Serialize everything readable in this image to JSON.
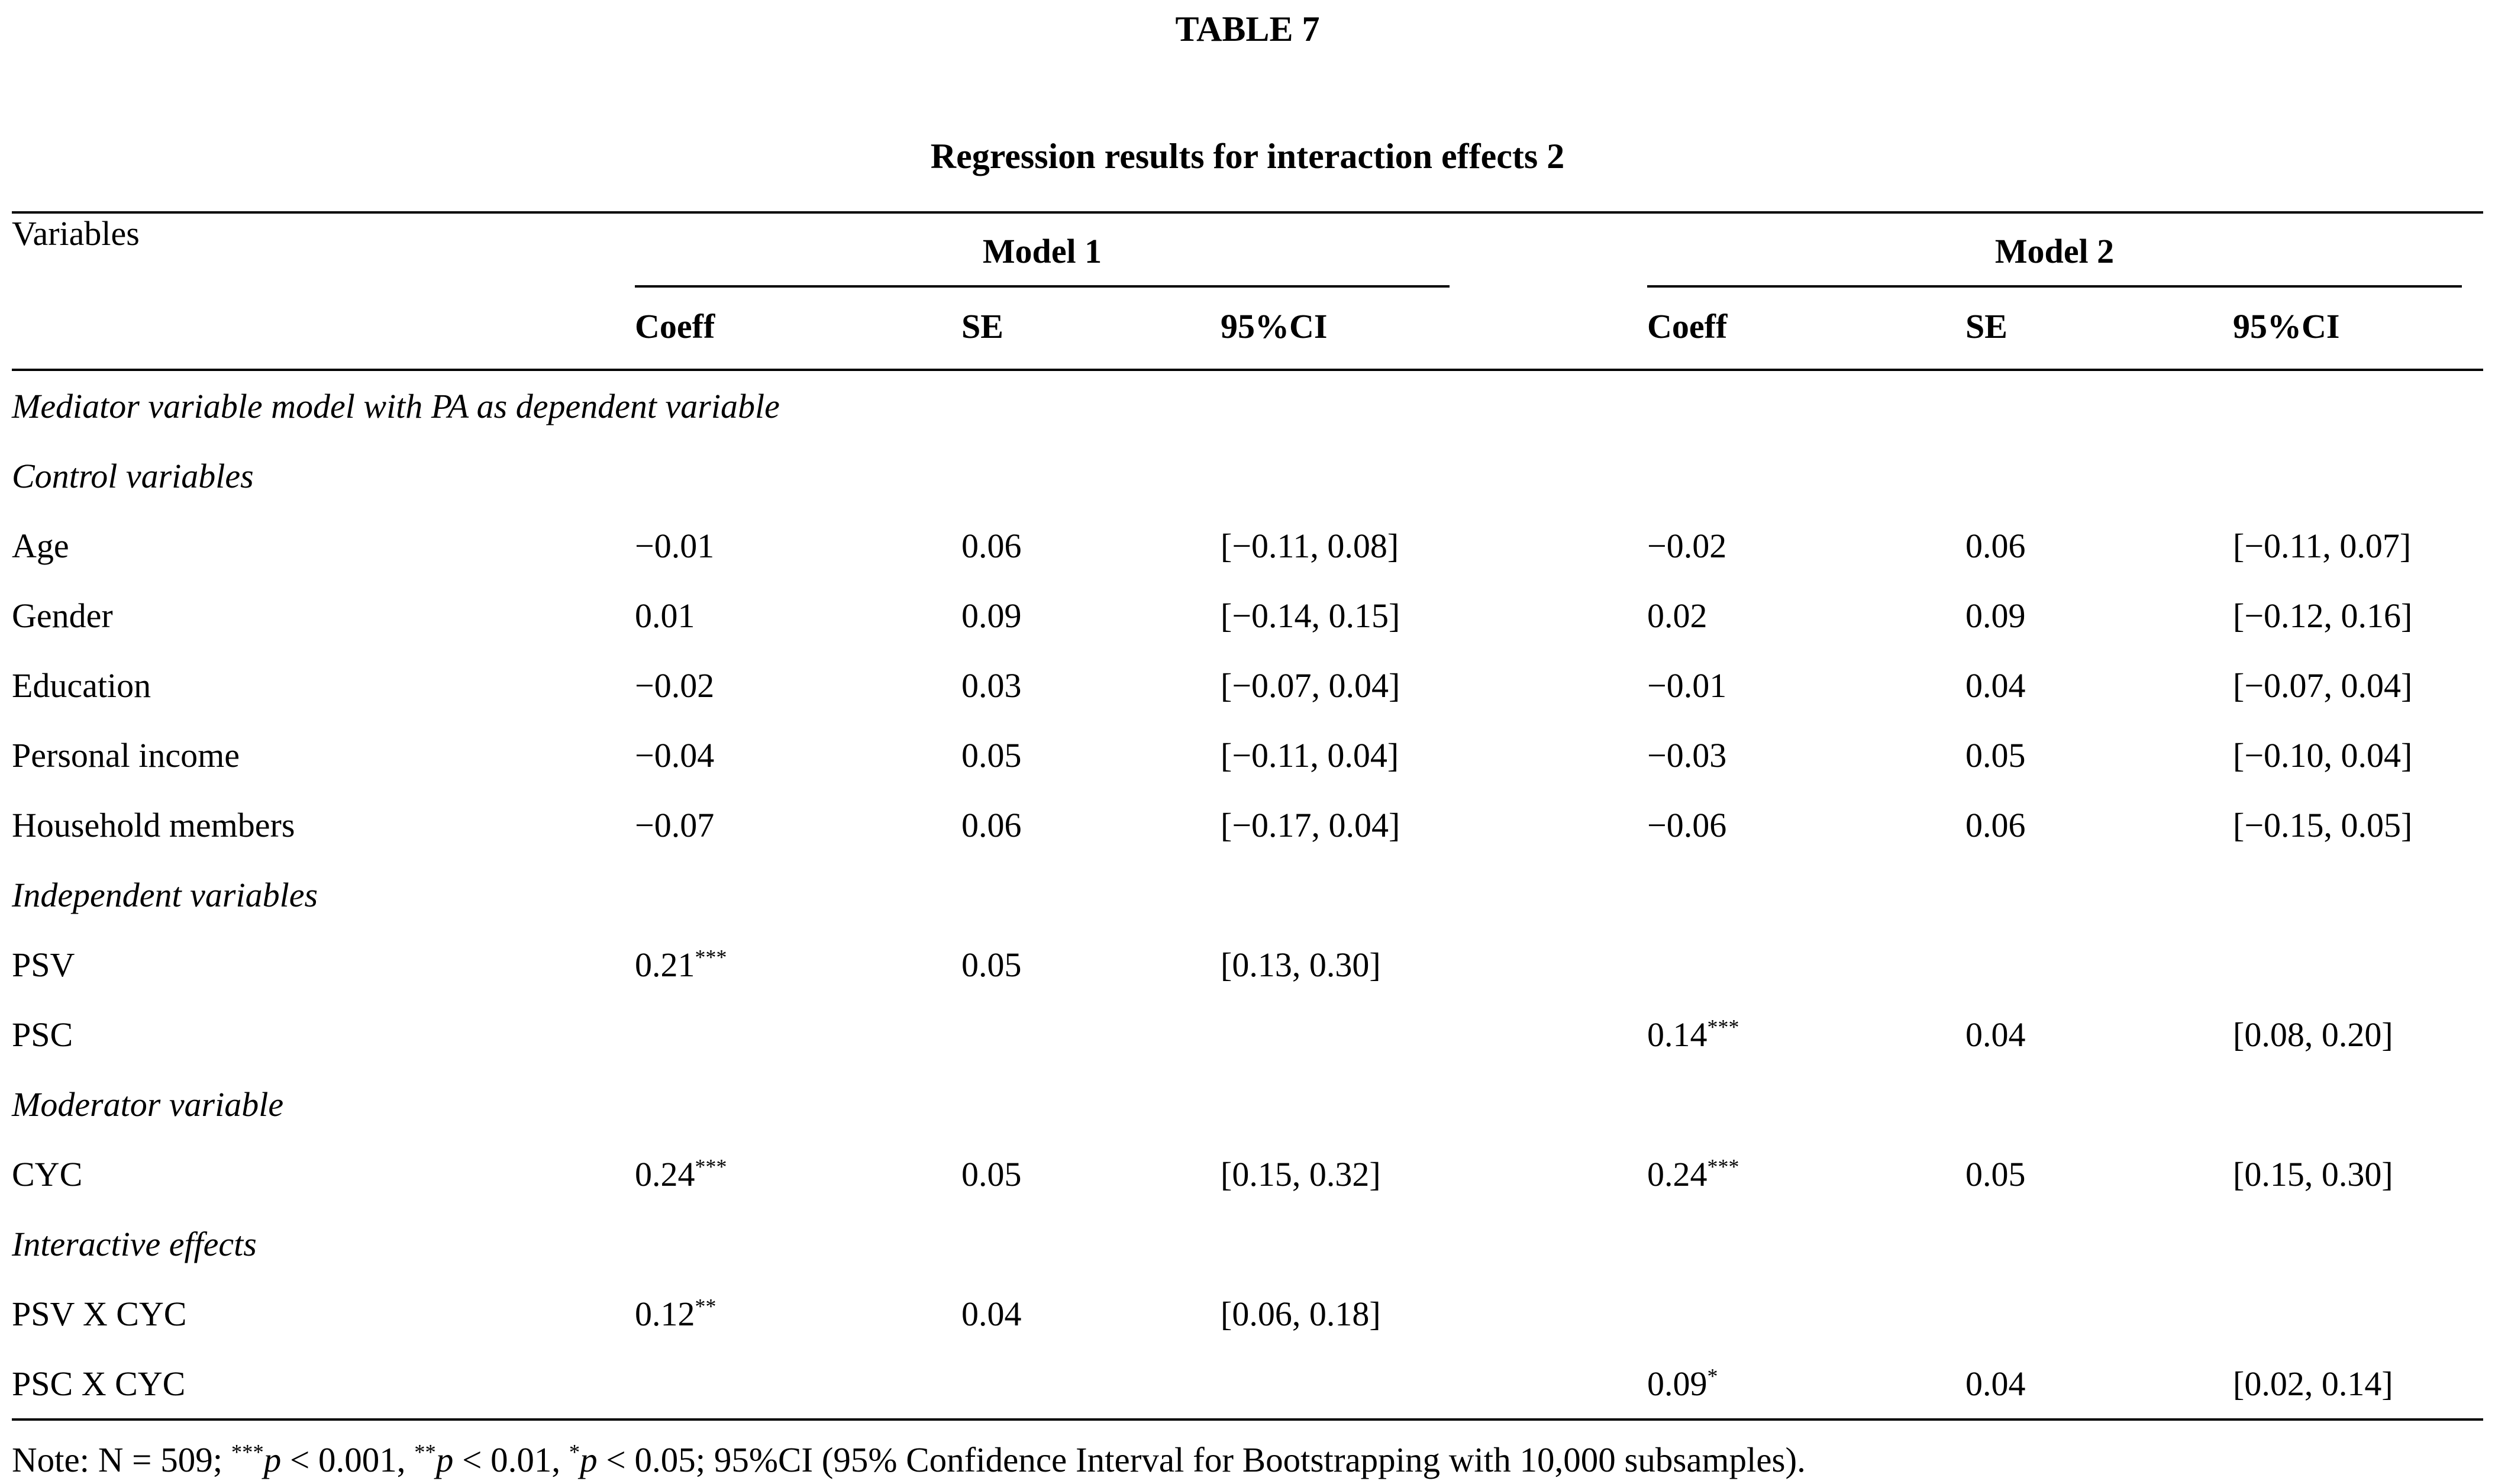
{
  "colors": {
    "background": "#ffffff",
    "text": "#000000",
    "rule": "#000000"
  },
  "title": "TABLE 7",
  "subtitle": "Regression results for interaction effects 2",
  "table": {
    "header": {
      "variables": "Variables",
      "model1": "Model 1",
      "model2": "Model 2",
      "sub": [
        "Coeff",
        "SE",
        "95%CI"
      ]
    },
    "rows": [
      {
        "type": "section",
        "label": "Mediator variable model with PA as dependent variable"
      },
      {
        "type": "section",
        "label": "Control variables"
      },
      {
        "type": "data",
        "label": "Age",
        "m1": {
          "coeff": "−0.01",
          "stars": "",
          "se": "0.06",
          "ci": "[−0.11, 0.08]"
        },
        "m2": {
          "coeff": "−0.02",
          "stars": "",
          "se": "0.06",
          "ci": "[−0.11, 0.07]"
        }
      },
      {
        "type": "data",
        "label": "Gender",
        "m1": {
          "coeff": "0.01",
          "stars": "",
          "se": "0.09",
          "ci": "[−0.14, 0.15]"
        },
        "m2": {
          "coeff": "0.02",
          "stars": "",
          "se": "0.09",
          "ci": "[−0.12, 0.16]"
        }
      },
      {
        "type": "data",
        "label": "Education",
        "m1": {
          "coeff": "−0.02",
          "stars": "",
          "se": "0.03",
          "ci": "[−0.07, 0.04]"
        },
        "m2": {
          "coeff": "−0.01",
          "stars": "",
          "se": "0.04",
          "ci": "[−0.07, 0.04]"
        }
      },
      {
        "type": "data",
        "label": "Personal income",
        "m1": {
          "coeff": "−0.04",
          "stars": "",
          "se": "0.05",
          "ci": "[−0.11, 0.04]"
        },
        "m2": {
          "coeff": "−0.03",
          "stars": "",
          "se": "0.05",
          "ci": "[−0.10, 0.04]"
        }
      },
      {
        "type": "data",
        "label": "Household members",
        "m1": {
          "coeff": "−0.07",
          "stars": "",
          "se": "0.06",
          "ci": "[−0.17, 0.04]"
        },
        "m2": {
          "coeff": "−0.06",
          "stars": "",
          "se": "0.06",
          "ci": "[−0.15, 0.05]"
        }
      },
      {
        "type": "section",
        "label": "Independent variables"
      },
      {
        "type": "data",
        "label": "PSV",
        "m1": {
          "coeff": "0.21",
          "stars": "***",
          "se": "0.05",
          "ci": "[0.13, 0.30]"
        },
        "m2": null
      },
      {
        "type": "data",
        "label": "PSC",
        "m1": null,
        "m2": {
          "coeff": "0.14",
          "stars": "***",
          "se": "0.04",
          "ci": "[0.08, 0.20]"
        }
      },
      {
        "type": "section",
        "label": "Moderator variable"
      },
      {
        "type": "data",
        "label": "CYC",
        "m1": {
          "coeff": "0.24",
          "stars": "***",
          "se": "0.05",
          "ci": "[0.15, 0.32]"
        },
        "m2": {
          "coeff": "0.24",
          "stars": "***",
          "se": "0.05",
          "ci": "[0.15, 0.30]"
        }
      },
      {
        "type": "section",
        "label": "Interactive effects"
      },
      {
        "type": "data",
        "label": "PSV X CYC",
        "m1": {
          "coeff": "0.12",
          "stars": "**",
          "se": "0.04",
          "ci": "[0.06, 0.18]"
        },
        "m2": null
      },
      {
        "type": "data",
        "label": "PSC X CYC",
        "m1": null,
        "m2": {
          "coeff": "0.09",
          "stars": "*",
          "se": "0.04",
          "ci": "[0.02, 0.14]"
        }
      }
    ]
  },
  "note_parts": [
    {
      "text": "Note: N = 509; ",
      "style": "plain"
    },
    {
      "text": "***",
      "style": "sup"
    },
    {
      "text": "p",
      "style": "italic"
    },
    {
      "text": " < 0.001, ",
      "style": "plain"
    },
    {
      "text": "**",
      "style": "sup"
    },
    {
      "text": "p",
      "style": "italic"
    },
    {
      "text": " < 0.01, ",
      "style": "plain"
    },
    {
      "text": "*",
      "style": "sup"
    },
    {
      "text": "p",
      "style": "italic"
    },
    {
      "text": " < 0.05; 95%CI (95% Confidence Interval for Bootstrapping with 10,000 subsamples).",
      "style": "plain"
    }
  ]
}
